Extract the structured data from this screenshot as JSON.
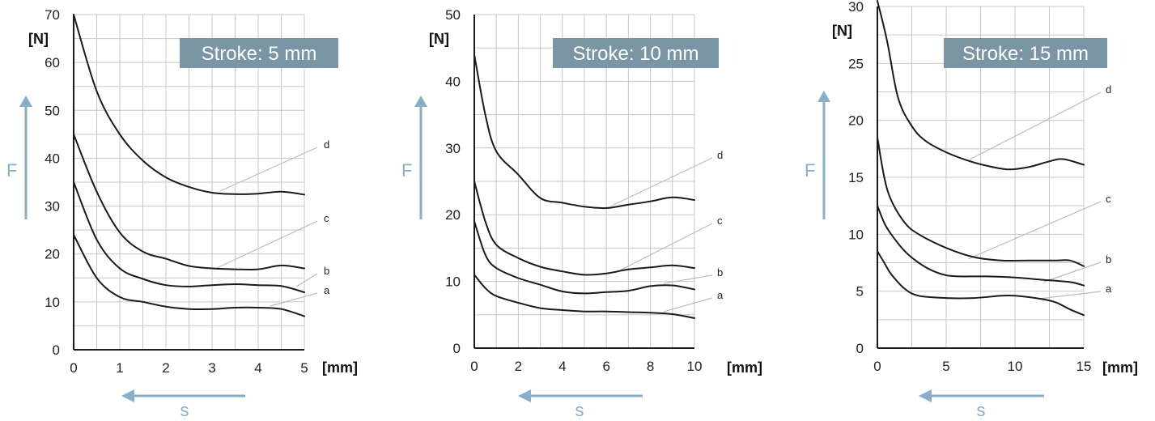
{
  "colors": {
    "curve": "#1a1a1a",
    "grid": "#c8c8c8",
    "leader": "#bdbdbd",
    "badge_bg": "#7a95a4",
    "badge_text": "#ffffff",
    "arrow": "#8aaec8",
    "tick_text": "#222222"
  },
  "chart_data": [
    {
      "type": "line",
      "title": "Stroke: 5 mm",
      "ylabel": "[N]",
      "xlabel": "[mm]",
      "force_label": "F",
      "travel_label": "s",
      "xlim": [
        0,
        5
      ],
      "ylim": [
        0,
        70
      ],
      "x_ticks": [
        0,
        1,
        2,
        3,
        4,
        5
      ],
      "y_ticks": [
        0,
        10,
        20,
        30,
        40,
        50,
        60,
        70
      ],
      "grid": true,
      "series": [
        {
          "name": "d",
          "points": [
            [
              0,
              70
            ],
            [
              0.5,
              54
            ],
            [
              1,
              45
            ],
            [
              1.5,
              39.5
            ],
            [
              2,
              36
            ],
            [
              2.5,
              34
            ],
            [
              3,
              32.8
            ],
            [
              3.5,
              32.5
            ],
            [
              4,
              32.6
            ],
            [
              4.5,
              33
            ],
            [
              5,
              32.4
            ]
          ]
        },
        {
          "name": "c",
          "points": [
            [
              0,
              45
            ],
            [
              0.5,
              33
            ],
            [
              1,
              24.5
            ],
            [
              1.5,
              20.5
            ],
            [
              2,
              19
            ],
            [
              2.5,
              17.5
            ],
            [
              3,
              17
            ],
            [
              3.5,
              16.8
            ],
            [
              4,
              16.8
            ],
            [
              4.5,
              17.6
            ],
            [
              5,
              17
            ]
          ]
        },
        {
          "name": "b",
          "points": [
            [
              0,
              35
            ],
            [
              0.5,
              23
            ],
            [
              1,
              17
            ],
            [
              1.5,
              14.8
            ],
            [
              2,
              13.5
            ],
            [
              2.5,
              13.2
            ],
            [
              3,
              13.5
            ],
            [
              3.5,
              13.7
            ],
            [
              4,
              13.5
            ],
            [
              4.5,
              13.3
            ],
            [
              5,
              12
            ]
          ]
        },
        {
          "name": "a",
          "points": [
            [
              0,
              24
            ],
            [
              0.5,
              15
            ],
            [
              1,
              11
            ],
            [
              1.5,
              10
            ],
            [
              2,
              9
            ],
            [
              2.5,
              8.5
            ],
            [
              3,
              8.5
            ],
            [
              3.5,
              8.8
            ],
            [
              4,
              8.8
            ],
            [
              4.5,
              8.5
            ],
            [
              5,
              7
            ]
          ]
        }
      ]
    },
    {
      "type": "line",
      "title": "Stroke: 10 mm",
      "ylabel": "[N]",
      "xlabel": "[mm]",
      "force_label": "F",
      "travel_label": "s",
      "xlim": [
        0,
        10
      ],
      "ylim": [
        0,
        50
      ],
      "x_ticks": [
        0,
        2,
        4,
        6,
        8,
        10
      ],
      "y_ticks": [
        0,
        10,
        20,
        30,
        40,
        50
      ],
      "grid": true,
      "series": [
        {
          "name": "d",
          "points": [
            [
              0,
              44
            ],
            [
              0.5,
              35
            ],
            [
              1,
              29.5
            ],
            [
              2,
              26
            ],
            [
              3,
              22.5
            ],
            [
              4,
              21.8
            ],
            [
              5,
              21.2
            ],
            [
              6,
              21
            ],
            [
              7,
              21.5
            ],
            [
              8,
              22
            ],
            [
              9,
              22.6
            ],
            [
              10,
              22.2
            ]
          ]
        },
        {
          "name": "c",
          "points": [
            [
              0,
              25
            ],
            [
              0.5,
              19
            ],
            [
              1,
              15.5
            ],
            [
              2,
              13.5
            ],
            [
              3,
              12.2
            ],
            [
              4,
              11.5
            ],
            [
              5,
              11
            ],
            [
              6,
              11.2
            ],
            [
              7,
              11.8
            ],
            [
              8,
              12.1
            ],
            [
              9,
              12.4
            ],
            [
              10,
              12
            ]
          ]
        },
        {
          "name": "b",
          "points": [
            [
              0,
              19
            ],
            [
              0.5,
              14
            ],
            [
              1,
              12
            ],
            [
              2,
              10.5
            ],
            [
              3,
              9.5
            ],
            [
              4,
              8.5
            ],
            [
              5,
              8.2
            ],
            [
              6,
              8.4
            ],
            [
              7,
              8.6
            ],
            [
              8,
              9.3
            ],
            [
              9,
              9.4
            ],
            [
              10,
              8.8
            ]
          ]
        },
        {
          "name": "a",
          "points": [
            [
              0,
              11
            ],
            [
              0.5,
              9
            ],
            [
              1,
              7.8
            ],
            [
              2,
              6.8
            ],
            [
              3,
              6
            ],
            [
              4,
              5.7
            ],
            [
              5,
              5.5
            ],
            [
              6,
              5.5
            ],
            [
              7,
              5.4
            ],
            [
              8,
              5.3
            ],
            [
              9,
              5.1
            ],
            [
              10,
              4.5
            ]
          ]
        }
      ]
    },
    {
      "type": "line",
      "title": "Stroke: 15 mm",
      "ylabel": "[N]",
      "xlabel": "[mm]",
      "force_label": "F",
      "travel_label": "s",
      "xlim": [
        0,
        15
      ],
      "ylim": [
        0,
        30
      ],
      "x_ticks": [
        0,
        5,
        10,
        15
      ],
      "y_ticks": [
        0,
        5,
        10,
        15,
        20,
        25,
        30
      ],
      "grid": true,
      "series": [
        {
          "name": "d",
          "points": [
            [
              0,
              30.5
            ],
            [
              0.7,
              27
            ],
            [
              1.5,
              22
            ],
            [
              2.5,
              19.5
            ],
            [
              3.5,
              18.2
            ],
            [
              5,
              17.2
            ],
            [
              6.5,
              16.5
            ],
            [
              8,
              16
            ],
            [
              9.5,
              15.7
            ],
            [
              11,
              15.9
            ],
            [
              12.5,
              16.4
            ],
            [
              13.5,
              16.6
            ],
            [
              15,
              16.1
            ]
          ]
        },
        {
          "name": "c",
          "points": [
            [
              0,
              18.5
            ],
            [
              0.5,
              15
            ],
            [
              1,
              13
            ],
            [
              2,
              11
            ],
            [
              3,
              10
            ],
            [
              5,
              8.8
            ],
            [
              7,
              8
            ],
            [
              9,
              7.7
            ],
            [
              11,
              7.7
            ],
            [
              13,
              7.7
            ],
            [
              14,
              7.7
            ],
            [
              15,
              7.2
            ]
          ]
        },
        {
          "name": "b",
          "points": [
            [
              0,
              12.5
            ],
            [
              0.5,
              11
            ],
            [
              1,
              10
            ],
            [
              2,
              8.5
            ],
            [
              3,
              7.5
            ],
            [
              4,
              6.8
            ],
            [
              5,
              6.4
            ],
            [
              6,
              6.3
            ],
            [
              8,
              6.3
            ],
            [
              10,
              6.2
            ],
            [
              12,
              6
            ],
            [
              14,
              5.8
            ],
            [
              15,
              5.5
            ]
          ]
        },
        {
          "name": "a",
          "points": [
            [
              0,
              8.5
            ],
            [
              0.5,
              7.5
            ],
            [
              1,
              6.5
            ],
            [
              2,
              5.2
            ],
            [
              3,
              4.6
            ],
            [
              5,
              4.4
            ],
            [
              7,
              4.4
            ],
            [
              9,
              4.6
            ],
            [
              10,
              4.6
            ],
            [
              12,
              4.3
            ],
            [
              13,
              4
            ],
            [
              14,
              3.4
            ],
            [
              15,
              2.9
            ]
          ]
        }
      ]
    }
  ]
}
